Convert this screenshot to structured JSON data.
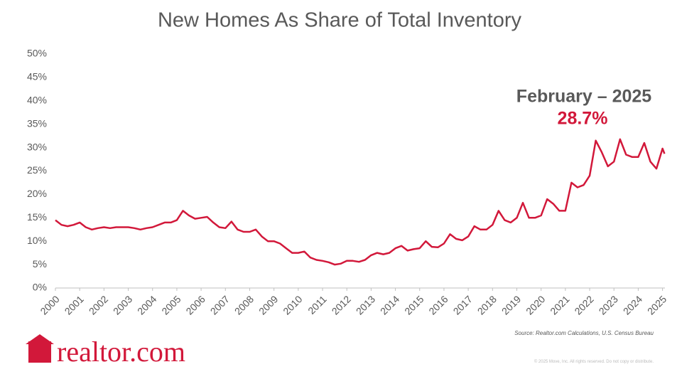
{
  "chart_data": {
    "type": "line",
    "title": "New Homes As Share of Total Inventory",
    "annotation": {
      "title": "February – 2025",
      "value": "28.7%"
    },
    "source": "Source: Realtor.com Calculations, U.S. Census Bureau",
    "copyright": "© 2025 Move, Inc. All rights reserved. Do not copy or distribute.",
    "logo": "realtor.com",
    "color": "#d2183a",
    "xlim": [
      2000,
      2025.1
    ],
    "xticks": [
      2000,
      2001,
      2002,
      2003,
      2004,
      2005,
      2006,
      2007,
      2008,
      2009,
      2010,
      2011,
      2012,
      2013,
      2014,
      2015,
      2016,
      2017,
      2018,
      2019,
      2020,
      2021,
      2022,
      2023,
      2024,
      2025
    ],
    "ylim": [
      0,
      50
    ],
    "yticks": [
      {
        "value": 0,
        "label": "0%"
      },
      {
        "value": 5,
        "label": "5%"
      },
      {
        "value": 10,
        "label": "10%"
      },
      {
        "value": 15,
        "label": "15%"
      },
      {
        "value": 20,
        "label": "20%"
      },
      {
        "value": 25,
        "label": "25%"
      },
      {
        "value": 30,
        "label": "30%"
      },
      {
        "value": 35,
        "label": "35%"
      },
      {
        "value": 40,
        "label": "40%"
      },
      {
        "value": 45,
        "label": "45%"
      },
      {
        "value": 50,
        "label": "50%"
      }
    ],
    "x": [
      2000,
      2000.25,
      2000.5,
      2000.75,
      2001,
      2001.25,
      2001.5,
      2001.75,
      2002,
      2002.25,
      2002.5,
      2002.75,
      2003,
      2003.25,
      2003.5,
      2003.75,
      2004,
      2004.25,
      2004.5,
      2004.75,
      2005,
      2005.25,
      2005.5,
      2005.75,
      2006,
      2006.25,
      2006.5,
      2006.75,
      2007,
      2007.25,
      2007.5,
      2007.75,
      2008,
      2008.25,
      2008.5,
      2008.75,
      2009,
      2009.25,
      2009.5,
      2009.75,
      2010,
      2010.25,
      2010.5,
      2010.75,
      2011,
      2011.25,
      2011.5,
      2011.75,
      2012,
      2012.25,
      2012.5,
      2012.75,
      2013,
      2013.25,
      2013.5,
      2013.75,
      2014,
      2014.25,
      2014.5,
      2014.75,
      2015,
      2015.25,
      2015.5,
      2015.75,
      2016,
      2016.25,
      2016.5,
      2016.75,
      2017,
      2017.25,
      2017.5,
      2017.75,
      2018,
      2018.25,
      2018.5,
      2018.75,
      2019,
      2019.25,
      2019.5,
      2019.75,
      2020,
      2020.25,
      2020.5,
      2020.75,
      2021,
      2021.25,
      2021.5,
      2021.75,
      2022,
      2022.25,
      2022.5,
      2022.75,
      2023,
      2023.25,
      2023.5,
      2023.75,
      2024,
      2024.25,
      2024.5,
      2024.75,
      2025,
      2025.083
    ],
    "values": [
      14.5,
      13.5,
      13.2,
      13.5,
      14,
      13,
      12.5,
      12.8,
      13,
      12.8,
      13,
      13,
      13,
      12.8,
      12.5,
      12.8,
      13,
      13.5,
      14,
      14,
      14.5,
      16.5,
      15.5,
      14.8,
      15,
      15.2,
      14,
      13,
      12.8,
      14.2,
      12.5,
      12,
      12,
      12.5,
      11,
      10,
      10,
      9.5,
      8.5,
      7.5,
      7.5,
      7.8,
      6.5,
      6,
      5.8,
      5.5,
      5,
      5.2,
      5.8,
      5.8,
      5.6,
      6,
      7,
      7.5,
      7.2,
      7.5,
      8.5,
      9,
      8,
      8.3,
      8.5,
      10,
      8.8,
      8.7,
      9.5,
      11.5,
      10.5,
      10.2,
      11,
      13.2,
      12.5,
      12.5,
      13.5,
      16.5,
      14.5,
      14,
      15,
      18.2,
      15,
      15,
      15.5,
      19,
      18,
      16.5,
      16.5,
      22.5,
      21.5,
      22,
      24,
      31.5,
      29,
      26,
      27,
      31.8,
      28.5,
      28,
      28,
      31,
      27,
      25.5,
      29.8,
      28.7
    ]
  }
}
